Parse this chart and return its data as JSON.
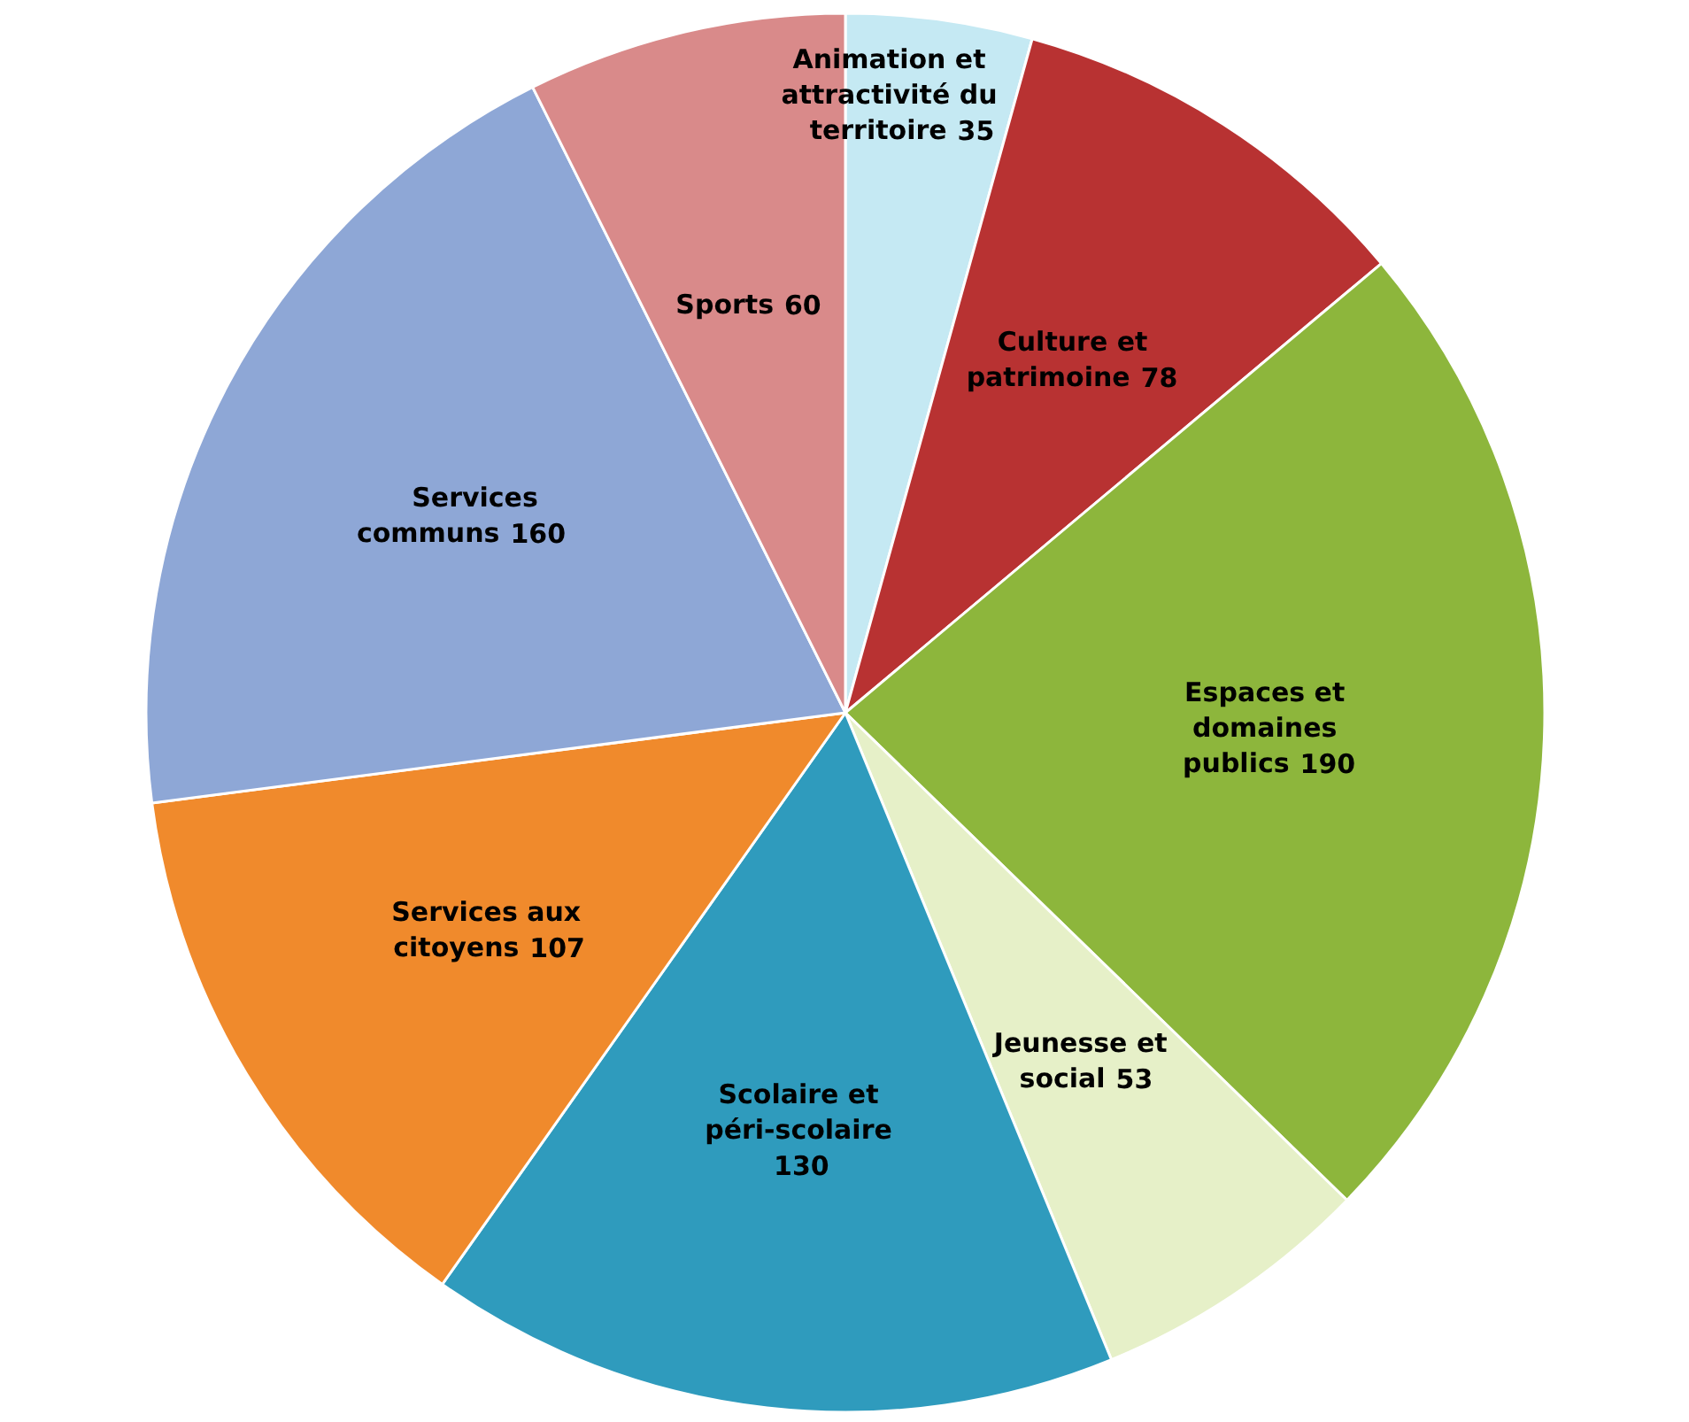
{
  "chart_data": {
    "type": "pie",
    "categories": [
      "Animation et attractivité du territoire",
      "Culture et patrimoine",
      "Espaces et domaines publics",
      "Jeunesse et social",
      "Scolaire et péri-scolaire",
      "Services aux citoyens",
      "Services communs",
      "Sports"
    ],
    "values": [
      35,
      78,
      190,
      53,
      130,
      107,
      160,
      60
    ],
    "colors": [
      "#c5e9f3",
      "#b83232",
      "#8db63c",
      "#e6f0c8",
      "#2f9bbd",
      "#f08a2c",
      "#8ea7d6",
      "#d98a8a"
    ],
    "data_labels": true
  }
}
